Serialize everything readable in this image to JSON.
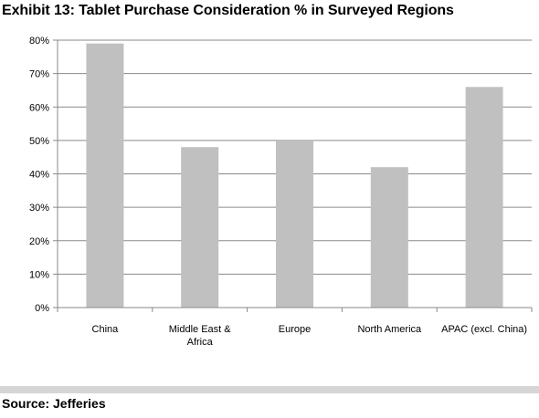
{
  "title": "Exhibit 13: Tablet Purchase Consideration % in Surveyed Regions",
  "source": "Source: Jefferies",
  "colors": {
    "bar": "#c0c0c0",
    "grid": "#8a8a8a",
    "axis": "#8a8a8a",
    "separator": "#d6d6d6"
  },
  "chart_data": {
    "type": "bar",
    "title": "Exhibit 13: Tablet Purchase Consideration % in Surveyed Regions",
    "xlabel": "",
    "ylabel": "",
    "categories": [
      [
        "China"
      ],
      [
        "Middle  East &",
        "Africa"
      ],
      [
        "Europe"
      ],
      [
        "North America"
      ],
      [
        "APAC (excl.  China)"
      ]
    ],
    "values": [
      79,
      48,
      50,
      42,
      66
    ],
    "ylim": [
      0,
      80
    ],
    "yticks": [
      0,
      10,
      20,
      30,
      40,
      50,
      60,
      70,
      80
    ],
    "ytick_labels": [
      "0%",
      "10%",
      "20%",
      "30%",
      "40%",
      "50%",
      "60%",
      "70%",
      "80%"
    ],
    "grid": true,
    "legend": "none"
  }
}
